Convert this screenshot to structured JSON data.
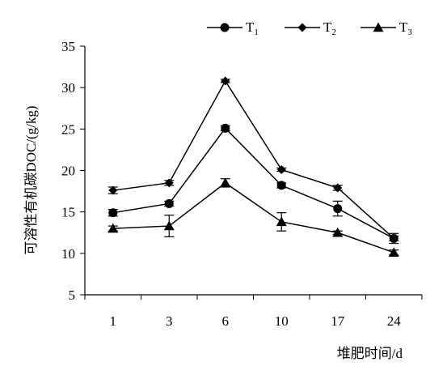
{
  "chart_data": {
    "type": "line",
    "categories": [
      "1",
      "3",
      "6",
      "10",
      "17",
      "24"
    ],
    "series": [
      {
        "name": "T1",
        "label_main": "T",
        "label_sub": "1",
        "marker": "circle",
        "values": [
          14.9,
          16.0,
          25.1,
          18.2,
          15.4,
          11.8
        ],
        "errors": [
          0.4,
          0.3,
          0.3,
          0.3,
          0.9,
          0.6
        ]
      },
      {
        "name": "T2",
        "label_main": "T",
        "label_sub": "2",
        "marker": "diamond",
        "values": [
          17.6,
          18.5,
          30.8,
          20.1,
          17.9,
          11.8
        ],
        "errors": [
          0.4,
          0.3,
          0.2,
          0.2,
          0.3,
          0.3
        ]
      },
      {
        "name": "T3",
        "label_main": "T",
        "label_sub": "3",
        "marker": "triangle",
        "values": [
          13.0,
          13.3,
          18.5,
          13.8,
          12.5,
          10.1
        ],
        "errors": [
          0.3,
          1.3,
          0.5,
          1.1,
          0.2,
          0.3
        ]
      }
    ],
    "ylabel": "可溶性有机碳DOC/(g/kg)",
    "xlabel": "堆肥时间/d",
    "ylim": [
      5,
      35
    ],
    "yticks": [
      5,
      10,
      15,
      20,
      25,
      30,
      35
    ],
    "grid": false,
    "legend_position": "top-right",
    "colors": {
      "line": "#000000",
      "marker": "#000000"
    }
  }
}
